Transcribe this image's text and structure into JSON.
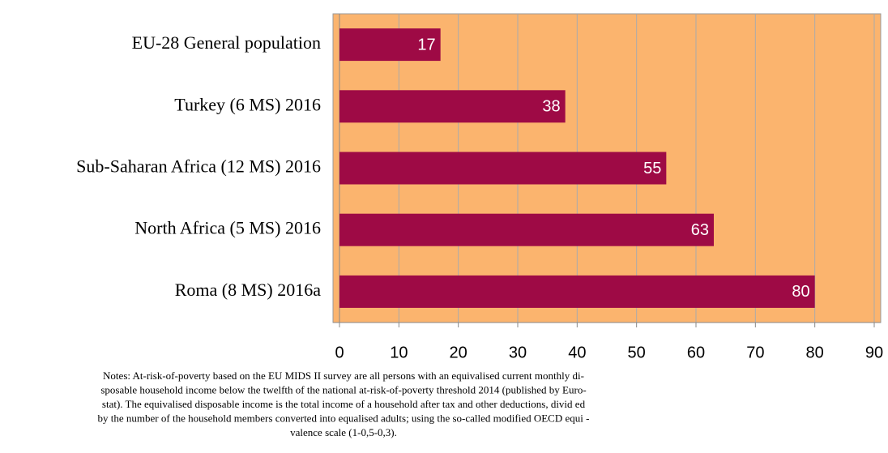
{
  "chart_data": {
    "type": "bar",
    "orientation": "horizontal",
    "categories": [
      "EU-28 General population",
      "Turkey (6 MS) 2016",
      "Sub-Saharan Africa (12 MS) 2016",
      "North Africa (5 MS) 2016",
      "Roma (8 MS) 2016a"
    ],
    "values": [
      17,
      38,
      55,
      63,
      80
    ],
    "color": "#9e0a45",
    "background": "#fbb46e",
    "xlim": [
      0,
      90
    ],
    "xticks": [
      0,
      10,
      20,
      30,
      40,
      50,
      60,
      70,
      80,
      90
    ],
    "grid": true,
    "notes": [
      "Notes: At-risk-of-poverty based on the EU MIDS II survey are all persons with an equivalised current monthly di-",
      "sposable household income below the twelfth of the national at-risk-of-poverty threshold 2014 (published by Euro-",
      "stat). The equivalised disposable income is the total income of a household after tax and other deductions, divid ed",
      "by the number of the household members converted into equalised adults; using the so-called modified OECD equi -",
      "valence scale (1-0,5-0,3)."
    ]
  }
}
